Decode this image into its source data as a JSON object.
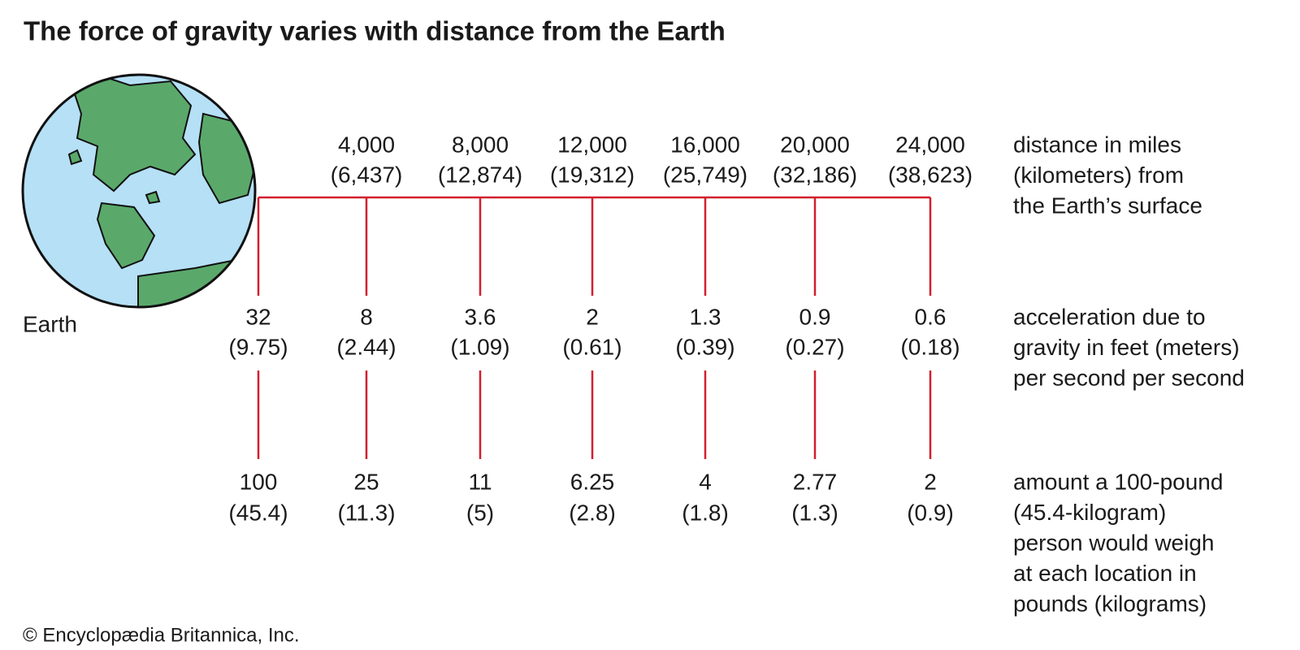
{
  "title": "The force of gravity varies with distance from the Earth",
  "earth_label": "Earth",
  "columns": [
    {
      "miles": null,
      "km": null,
      "ft": "32",
      "m": "(9.75)",
      "lb": "100",
      "kg": "(45.4)"
    },
    {
      "miles": "4,000",
      "km": "(6,437)",
      "ft": "8",
      "m": "(2.44)",
      "lb": "25",
      "kg": "(11.3)"
    },
    {
      "miles": "8,000",
      "km": "(12,874)",
      "ft": "3.6",
      "m": "(1.09)",
      "lb": "11",
      "kg": "(5)"
    },
    {
      "miles": "12,000",
      "km": "(19,312)",
      "ft": "2",
      "m": "(0.61)",
      "lb": "6.25",
      "kg": "(2.8)"
    },
    {
      "miles": "16,000",
      "km": "(25,749)",
      "ft": "1.3",
      "m": "(0.39)",
      "lb": "4",
      "kg": "(1.8)"
    },
    {
      "miles": "20,000",
      "km": "(32,186)",
      "ft": "0.9",
      "m": "(0.27)",
      "lb": "2.77",
      "kg": "(1.3)"
    },
    {
      "miles": "24,000",
      "km": "(38,623)",
      "ft": "0.6",
      "m": "(0.18)",
      "lb": "2",
      "kg": "(0.9)"
    }
  ],
  "row_labels": {
    "distance": [
      "distance in miles",
      "(kilometers) from",
      "the Earth’s surface"
    ],
    "acceleration": [
      "acceleration due to",
      "gravity in feet (meters)",
      "per second per second"
    ],
    "weight": [
      "amount a 100-pound",
      "(45.4-kilogram)",
      "person would weigh",
      "at each location in",
      "pounds (kilograms)"
    ]
  },
  "credit": "© Encyclopædia Britannica, Inc."
}
